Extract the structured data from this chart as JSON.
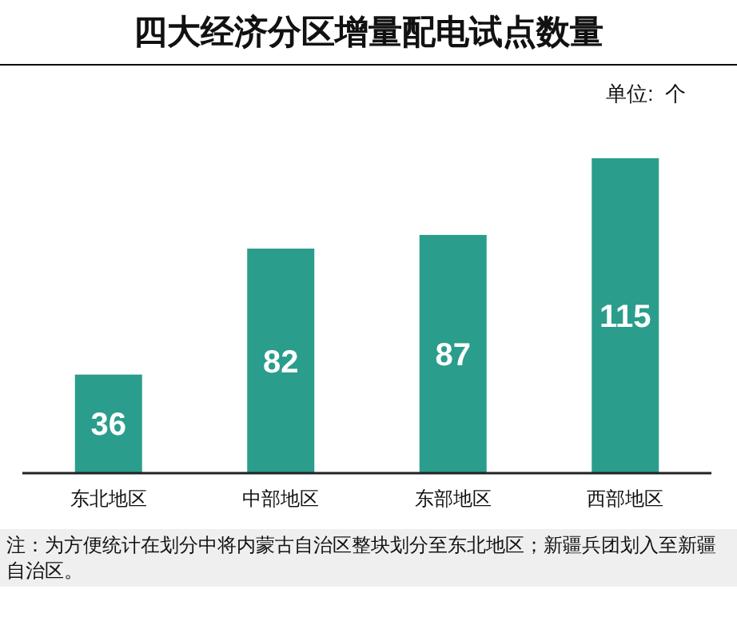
{
  "chart_data": {
    "type": "bar",
    "title": "四大经济分区增量配电试点数量",
    "categories": [
      "东北地区",
      "中部地区",
      "东部地区",
      "西部地区"
    ],
    "values": [
      36,
      82,
      87,
      115
    ],
    "color": "#2a9d8c",
    "data_labels": true,
    "annotations": [
      "单位:  个",
      "注：为方便统计在划分中将内蒙古自治区整块划分至东北地区；新疆兵团划入至新疆自治区。"
    ]
  }
}
